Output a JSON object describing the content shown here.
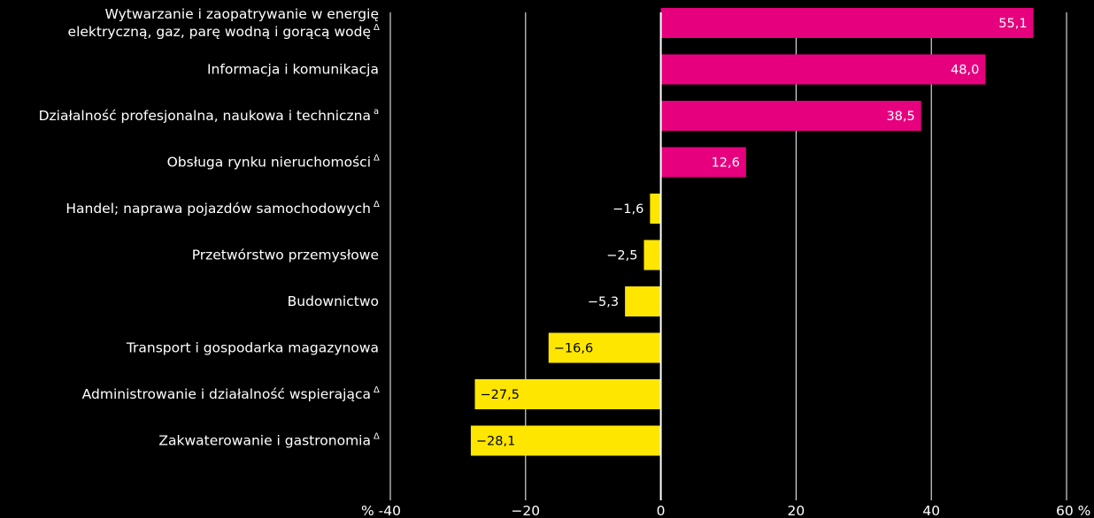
{
  "chart_data": {
    "type": "bar",
    "orientation": "horizontal",
    "categories": [
      {
        "lines": [
          "Wytwarzanie i zaopatrywanie w energię",
          "elektryczną, gaz, parę wodną i gorącą wodę"
        ],
        "mark": "Δ"
      },
      {
        "lines": [
          "Informacja i komunikacja"
        ],
        "mark": ""
      },
      {
        "lines": [
          "Działalność profesjonalna, naukowa i techniczna"
        ],
        "mark": "a"
      },
      {
        "lines": [
          "Obsługa rynku nieruchomości"
        ],
        "mark": "Δ"
      },
      {
        "lines": [
          "Handel; naprawa pojazdów samochodowych"
        ],
        "mark": "Δ"
      },
      {
        "lines": [
          "Przetwórstwo przemysłowe"
        ],
        "mark": ""
      },
      {
        "lines": [
          "Budownictwo"
        ],
        "mark": ""
      },
      {
        "lines": [
          "Transport i gospodarka magazynowa"
        ],
        "mark": ""
      },
      {
        "lines": [
          "Administrowanie i działalność wspierająca"
        ],
        "mark": "Δ"
      },
      {
        "lines": [
          "Zakwaterowanie i gastronomia"
        ],
        "mark": "Δ"
      }
    ],
    "values": [
      55.1,
      48.0,
      38.5,
      12.6,
      -1.6,
      -2.5,
      -5.3,
      -16.6,
      -27.5,
      -28.1
    ],
    "value_labels": [
      "55,1",
      "48,0",
      "38,5",
      "12,6",
      "−1,6",
      "−2,5",
      "−5,3",
      "−16,6",
      "−27,5",
      "−28,1"
    ],
    "xlim": [
      -40,
      60
    ],
    "x_ticks": [
      -40,
      -20,
      0,
      20,
      40,
      60
    ],
    "x_tick_labels": [
      "% -40",
      "−20",
      "0",
      "20",
      "40",
      "60 %"
    ],
    "grid": true,
    "colors": {
      "positive": "#e6007e",
      "negative": "#ffe600",
      "positive_label": "#ffffff",
      "negative_label": "#000000",
      "background": "#000000",
      "grid": "#ffffff"
    }
  }
}
